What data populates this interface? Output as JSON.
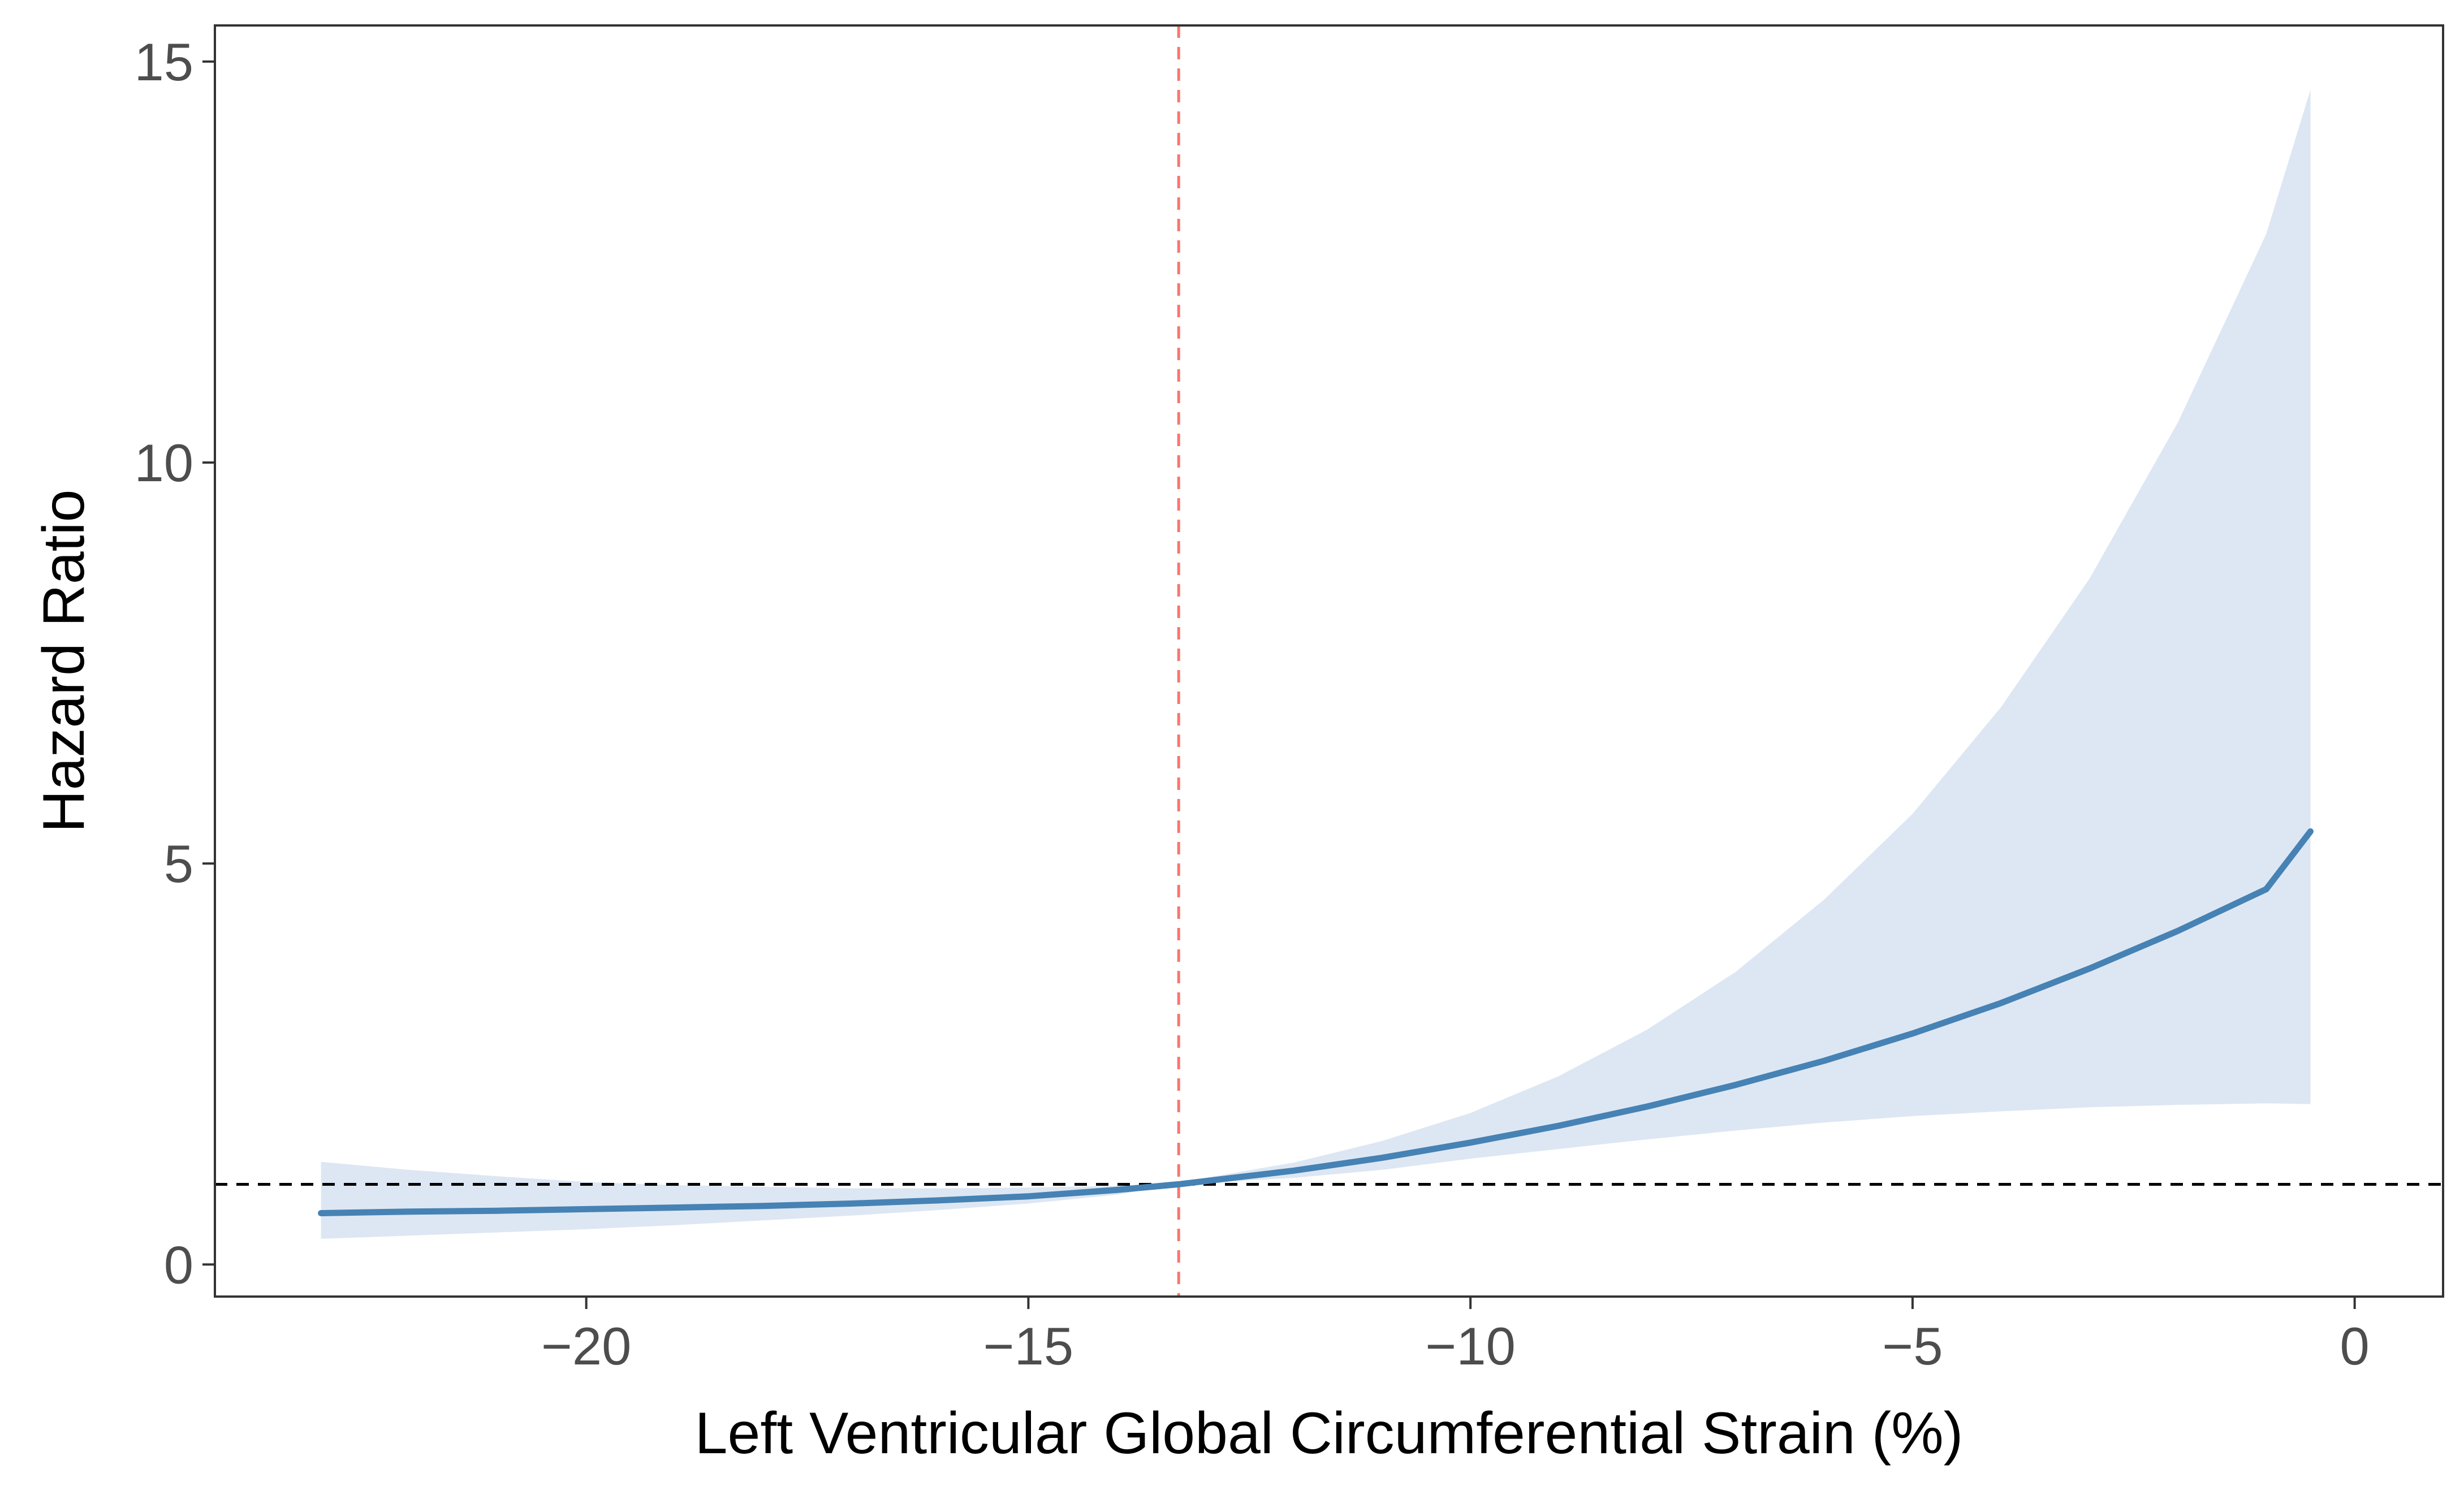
{
  "chart_data": {
    "type": "line",
    "title": "",
    "xlabel": "Left Ventricular Global Circumferential Strain (%)",
    "ylabel": "Hazard Ratio",
    "xlim": [
      -24.2,
      1.0
    ],
    "ylim": [
      -0.4,
      15.45
    ],
    "x_ticks": [
      {
        "value": -20,
        "label": "−20"
      },
      {
        "value": -15,
        "label": "−15"
      },
      {
        "value": -10,
        "label": "−10"
      },
      {
        "value": -5,
        "label": "−5"
      },
      {
        "value": 0,
        "label": "0"
      }
    ],
    "y_ticks": [
      {
        "value": 0,
        "label": "0"
      },
      {
        "value": 5,
        "label": "5"
      },
      {
        "value": 10,
        "label": "10"
      },
      {
        "value": 15,
        "label": "15"
      }
    ],
    "grid": false,
    "reference_lines": {
      "horizontal": {
        "y": 1,
        "color": "#000000",
        "style": "dashed"
      },
      "vertical": {
        "x": -13.3,
        "color": "#f8766d",
        "style": "dashed"
      }
    },
    "series": [
      {
        "name": "Hazard Ratio",
        "color": "#4682b4",
        "band_color": "#dde7f3",
        "x": [
          -23,
          -22,
          -21,
          -20,
          -19,
          -18,
          -17,
          -16,
          -15,
          -14,
          -13.3,
          -13,
          -12,
          -11,
          -10,
          -9,
          -8,
          -7,
          -6,
          -5,
          -4,
          -3,
          -2,
          -1,
          -0.5
        ],
        "y": [
          0.64,
          0.66,
          0.67,
          0.69,
          0.71,
          0.73,
          0.76,
          0.8,
          0.85,
          0.93,
          1.0,
          1.04,
          1.17,
          1.33,
          1.52,
          1.73,
          1.97,
          2.24,
          2.54,
          2.88,
          3.26,
          3.69,
          4.16,
          4.68,
          5.4
        ],
        "lower": [
          0.32,
          0.36,
          0.4,
          0.44,
          0.49,
          0.55,
          0.61,
          0.68,
          0.76,
          0.87,
          1.0,
          1.02,
          1.08,
          1.18,
          1.32,
          1.44,
          1.56,
          1.67,
          1.77,
          1.85,
          1.91,
          1.96,
          1.99,
          2.01,
          2.0
        ],
        "upper": [
          1.28,
          1.18,
          1.1,
          1.03,
          0.99,
          0.97,
          0.95,
          0.95,
          0.96,
          0.98,
          1.0,
          1.08,
          1.27,
          1.54,
          1.89,
          2.35,
          2.93,
          3.65,
          4.55,
          5.62,
          6.95,
          8.55,
          10.5,
          12.85,
          14.65
        ]
      }
    ]
  }
}
